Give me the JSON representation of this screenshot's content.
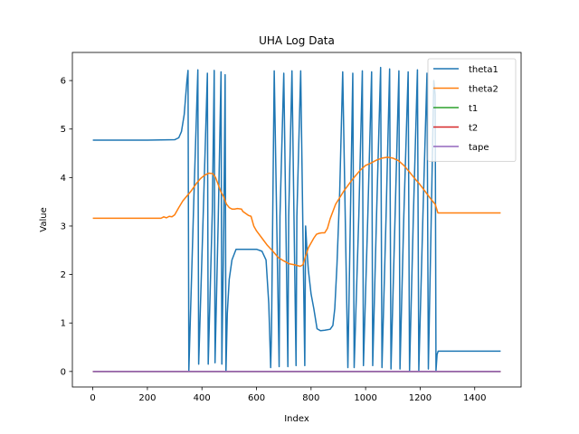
{
  "chart_data": {
    "type": "line",
    "title": "UHA Log Data",
    "xlabel": "Index",
    "ylabel": "Value",
    "xlim": [
      -75,
      1570
    ],
    "ylim": [
      -0.32,
      6.58
    ],
    "xticks": [
      0,
      200,
      400,
      600,
      800,
      1000,
      1200,
      1400
    ],
    "yticks": [
      0,
      1,
      2,
      3,
      4,
      5,
      6
    ],
    "grid": false,
    "legend_position": "top-right",
    "series": [
      {
        "name": "theta1",
        "color": "#1f77b4",
        "x": [
          0,
          100,
          200,
          300,
          315,
          325,
          335,
          345,
          349,
          352,
          370,
          385,
          388,
          405,
          420,
          423,
          438,
          445,
          448,
          460,
          470,
          473,
          480,
          485,
          488,
          493,
          500,
          510,
          525,
          600,
          620,
          635,
          645,
          652,
          655,
          665,
          683,
          686,
          700,
          715,
          718,
          730,
          745,
          748,
          762,
          777,
          780,
          785,
          790,
          796,
          800,
          810,
          822,
          835,
          850,
          870,
          880,
          887,
          895,
          905,
          916,
          935,
          953,
          958,
          975,
          988,
          992,
          1008,
          1022,
          1026,
          1040,
          1055,
          1060,
          1075,
          1088,
          1093,
          1108,
          1122,
          1126,
          1140,
          1156,
          1161,
          1175,
          1190,
          1195,
          1210,
          1225,
          1230,
          1240,
          1250,
          1255,
          1258,
          1262,
          1266,
          1275,
          1300,
          1400,
          1495
        ],
        "values": [
          4.77,
          4.77,
          4.77,
          4.78,
          4.82,
          4.95,
          5.3,
          6.0,
          6.21,
          0.02,
          3.5,
          6.22,
          0.15,
          3.3,
          6.15,
          0.15,
          3.3,
          6.21,
          0.18,
          3.2,
          6.18,
          0.15,
          3.0,
          6.12,
          0.0,
          1.2,
          1.9,
          2.3,
          2.52,
          2.52,
          2.48,
          2.3,
          1.4,
          0.08,
          0.8,
          6.2,
          0.1,
          3.2,
          6.15,
          0.1,
          3.2,
          6.2,
          0.12,
          3.2,
          6.2,
          0.12,
          3.0,
          2.5,
          2.1,
          1.8,
          1.6,
          1.3,
          0.88,
          0.84,
          0.85,
          0.87,
          0.95,
          1.3,
          2.2,
          3.7,
          6.18,
          0.08,
          6.15,
          0.08,
          3.2,
          6.2,
          0.12,
          3.2,
          6.18,
          0.12,
          3.2,
          6.27,
          0.08,
          3.2,
          6.24,
          0.05,
          3.2,
          6.2,
          0.05,
          3.2,
          6.18,
          0.02,
          3.2,
          6.22,
          0.02,
          3.2,
          6.15,
          0.05,
          3.0,
          6.0,
          5.7,
          0.02,
          0.35,
          0.42,
          0.42,
          0.42,
          0.42,
          0.42
        ]
      },
      {
        "name": "theta2",
        "color": "#ff7f0e",
        "x": [
          0,
          100,
          200,
          250,
          260,
          270,
          280,
          290,
          300,
          315,
          330,
          345,
          360,
          380,
          395,
          410,
          425,
          440,
          450,
          460,
          470,
          480,
          490,
          500,
          510,
          520,
          530,
          545,
          550,
          560,
          570,
          580,
          590,
          600,
          620,
          640,
          660,
          680,
          700,
          720,
          740,
          760,
          770,
          780,
          790,
          800,
          810,
          820,
          830,
          840,
          850,
          860,
          870,
          890,
          920,
          950,
          980,
          1000,
          1020,
          1040,
          1060,
          1080,
          1100,
          1120,
          1140,
          1160,
          1180,
          1200,
          1220,
          1240,
          1255,
          1265,
          1275,
          1300,
          1400,
          1495
        ],
        "values": [
          3.16,
          3.16,
          3.16,
          3.16,
          3.19,
          3.17,
          3.2,
          3.19,
          3.23,
          3.38,
          3.52,
          3.62,
          3.72,
          3.88,
          3.98,
          4.05,
          4.09,
          4.08,
          4.0,
          3.85,
          3.7,
          3.6,
          3.45,
          3.38,
          3.35,
          3.35,
          3.36,
          3.35,
          3.3,
          3.26,
          3.22,
          3.2,
          3.0,
          2.9,
          2.75,
          2.6,
          2.48,
          2.35,
          2.28,
          2.22,
          2.2,
          2.17,
          2.2,
          2.38,
          2.55,
          2.65,
          2.75,
          2.83,
          2.85,
          2.86,
          2.86,
          2.95,
          3.15,
          3.45,
          3.72,
          3.95,
          4.15,
          4.25,
          4.3,
          4.36,
          4.4,
          4.42,
          4.4,
          4.35,
          4.25,
          4.12,
          3.98,
          3.85,
          3.7,
          3.55,
          3.45,
          3.27,
          3.27,
          3.27,
          3.27,
          3.27
        ]
      },
      {
        "name": "t1",
        "color": "#2ca02c",
        "x": [
          0,
          1495
        ],
        "values": [
          0,
          0
        ]
      },
      {
        "name": "t2",
        "color": "#d62728",
        "x": [
          0,
          1495
        ],
        "values": [
          0,
          0
        ]
      },
      {
        "name": "tape",
        "color": "#9467bd",
        "x": [
          0,
          1495
        ],
        "values": [
          0,
          0
        ]
      }
    ]
  }
}
